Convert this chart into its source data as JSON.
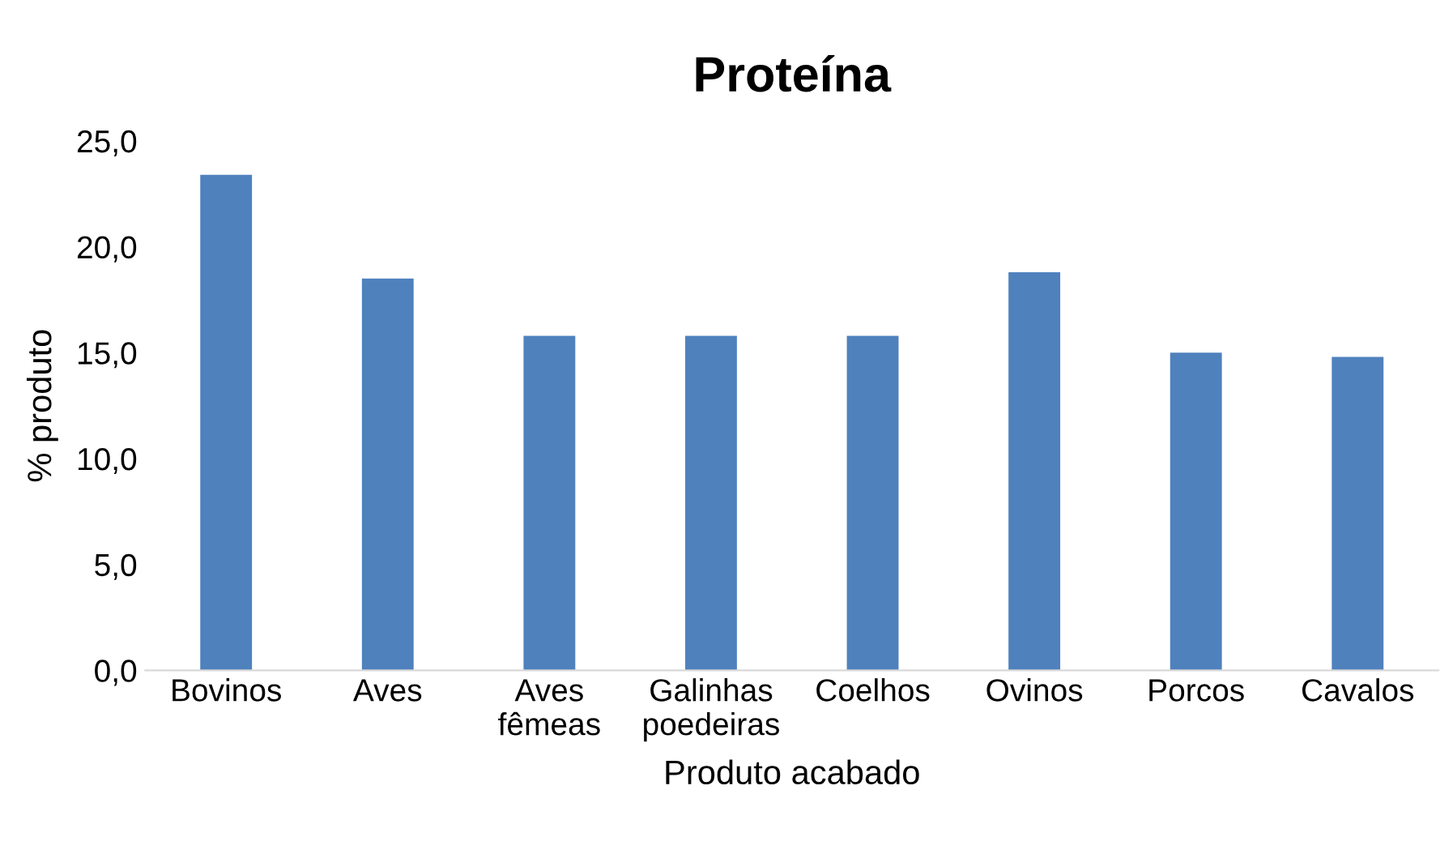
{
  "chart_data": {
    "type": "bar",
    "title": "Proteína",
    "xlabel": "Produto acabado",
    "ylabel": "% produto",
    "categories": [
      "Bovinos",
      "Aves",
      "Aves\nfêmeas",
      "Galinhas\npoedeiras",
      "Coelhos",
      "Ovinos",
      "Porcos",
      "Cavalos"
    ],
    "values": [
      23.4,
      18.5,
      15.8,
      15.8,
      15.8,
      18.8,
      15.0,
      14.8
    ],
    "color": "#4f81bd",
    "ylim": [
      0,
      25
    ],
    "yticks": [
      {
        "value": 0,
        "label": "0,0"
      },
      {
        "value": 5,
        "label": "5,0"
      },
      {
        "value": 10,
        "label": "10,0"
      },
      {
        "value": 15,
        "label": "15,0"
      },
      {
        "value": 20,
        "label": "20,0"
      },
      {
        "value": 25,
        "label": "25,0"
      }
    ],
    "grid": false,
    "legend": false
  }
}
